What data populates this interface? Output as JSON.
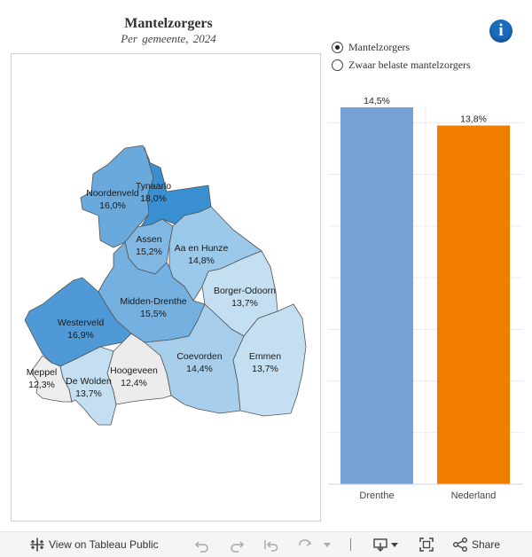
{
  "header": {
    "title": "Mantelzorgers",
    "subtitle": "Per gemeente, 2024"
  },
  "info_icon": "info-icon",
  "measure_selector": {
    "options": [
      {
        "label": "Mantelzorgers",
        "checked": true
      },
      {
        "label": "Zwaar belaste mantelzorgers",
        "checked": false
      }
    ]
  },
  "map": {
    "municipalities": [
      {
        "key": "noordenveld",
        "name": "Noordenveld",
        "value": "16,0%",
        "color": "#6aa9dc"
      },
      {
        "key": "tynaarlo",
        "name": "Tynaarlo",
        "value": "18,0%",
        "color": "#3a8fd0"
      },
      {
        "key": "assen",
        "name": "Assen",
        "value": "15,2%",
        "color": "#80b8e3"
      },
      {
        "key": "aa-en-hunze",
        "name": "Aa en Hunze",
        "value": "14,8%",
        "color": "#9ac9ea"
      },
      {
        "key": "borger-odoorn",
        "name": "Borger-Odoorn",
        "value": "13,7%",
        "color": "#c3dff1"
      },
      {
        "key": "midden-drenthe",
        "name": "Midden-Drenthe",
        "value": "15,5%",
        "color": "#74b0e0"
      },
      {
        "key": "westerveld",
        "name": "Westerveld",
        "value": "16,9%",
        "color": "#4f9ad6"
      },
      {
        "key": "coevorden",
        "name": "Coevorden",
        "value": "14,4%",
        "color": "#a7cfec"
      },
      {
        "key": "emmen",
        "name": "Emmen",
        "value": "13,7%",
        "color": "#c3dff1"
      },
      {
        "key": "meppel",
        "name": "Meppel",
        "value": "12,3%",
        "color": "#eeeeee"
      },
      {
        "key": "de-wolden",
        "name": "De Wolden",
        "value": "13,7%",
        "color": "#c3dff1"
      },
      {
        "key": "hoogeveen",
        "name": "Hoogeveen",
        "value": "12,4%",
        "color": "#ececec"
      }
    ]
  },
  "chart_data": {
    "type": "bar",
    "categories": [
      "Drenthe",
      "Nederland"
    ],
    "values": [
      14.5,
      13.8
    ],
    "value_labels": [
      "14,5%",
      "13,8%"
    ],
    "colors": [
      "#76a1d6",
      "#f07d00"
    ],
    "ylim": [
      0,
      14.5
    ],
    "title": "",
    "xlabel": "",
    "ylabel": ""
  },
  "toolbar": {
    "view_label": "View on Tableau Public",
    "share_label": "Share",
    "icons": [
      "tableau-logo-icon",
      "undo-icon",
      "redo-icon",
      "revert-icon",
      "refresh-icon",
      "dropdown-icon",
      "download-icon",
      "fullscreen-icon",
      "share-icon"
    ]
  }
}
